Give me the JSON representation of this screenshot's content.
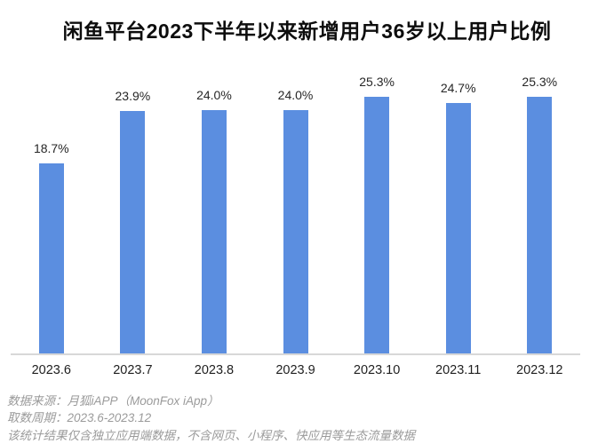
{
  "chart_data": {
    "type": "bar",
    "title": "闲鱼平台2023下半年以来新增用户36岁以上用户比例",
    "categories": [
      "2023.6",
      "2023.7",
      "2023.8",
      "2023.9",
      "2023.10",
      "2023.11",
      "2023.12"
    ],
    "values": [
      18.7,
      23.9,
      24.0,
      24.0,
      25.3,
      24.7,
      25.3
    ],
    "value_labels": [
      "18.7%",
      "23.9%",
      "24.0%",
      "24.0%",
      "25.3%",
      "24.7%",
      "25.3%"
    ],
    "ylabel": "",
    "xlabel": "",
    "ylim": [
      0,
      28
    ],
    "grid": false,
    "legend": "none",
    "bar_color": "#5B8EE0",
    "axis_line_color": "#D8D8D8"
  },
  "footer": {
    "lines": [
      "数据来源：月狐iAPP（MoonFox iApp）",
      "取数周期：2023.6-2023.12",
      "该统计结果仅含独立应用端数据，不含网页、小程序、快应用等生态流量数据"
    ]
  }
}
